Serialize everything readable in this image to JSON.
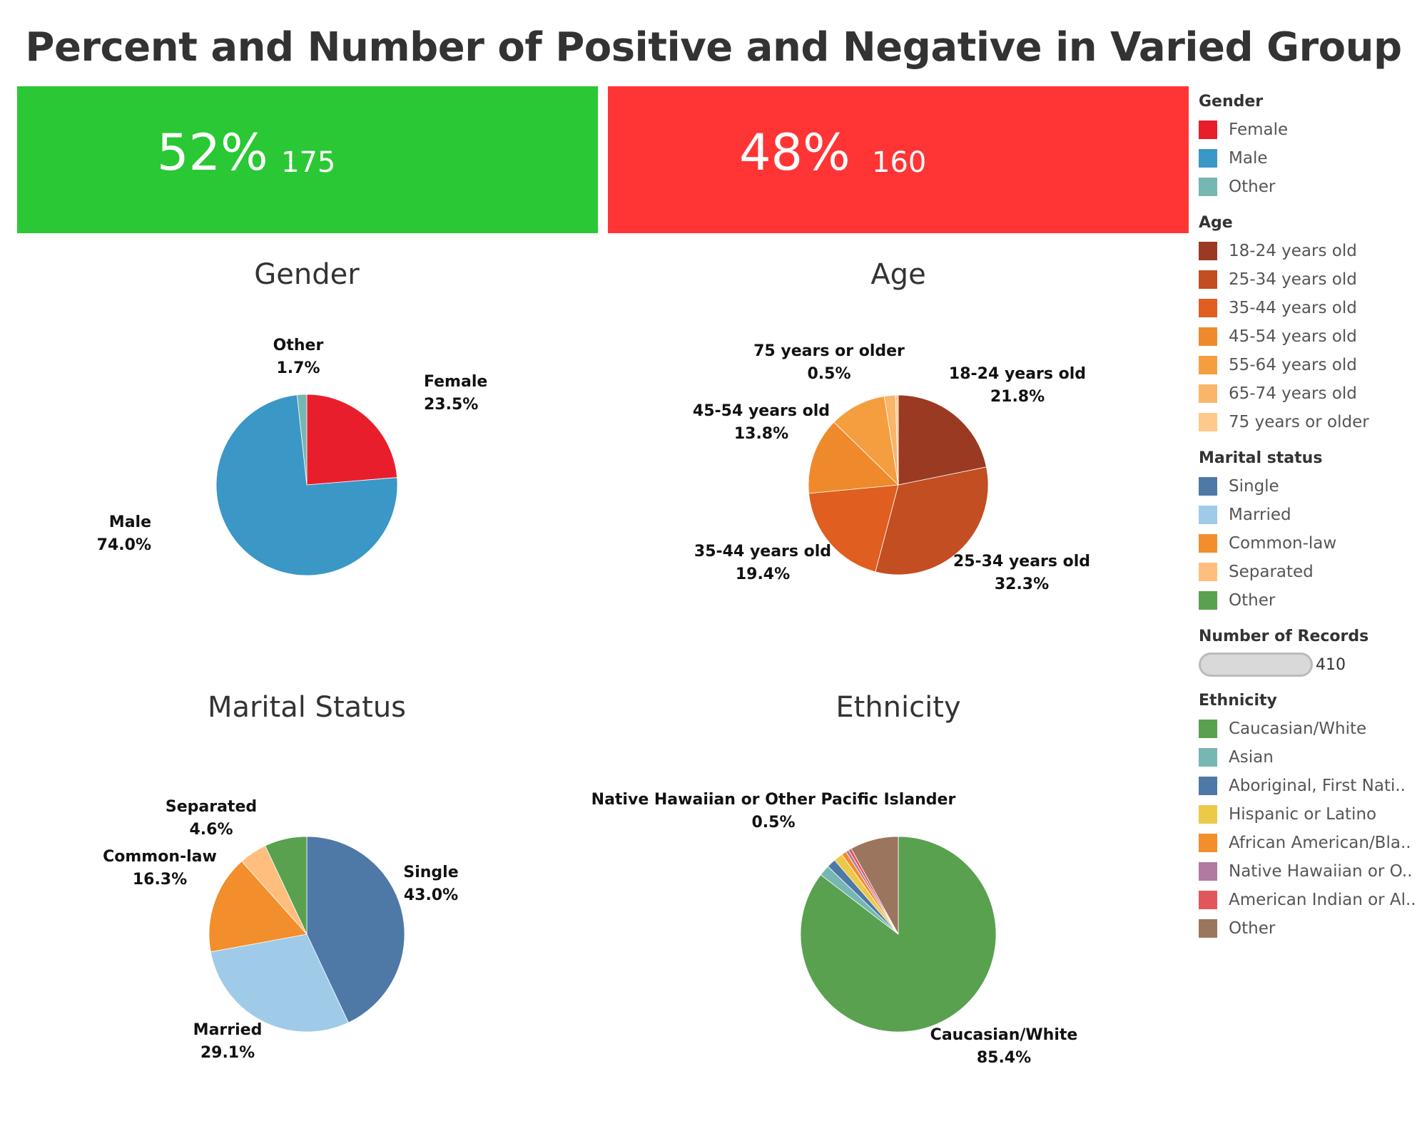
{
  "title": "Percent and Number of Positive and Negative in Varied Group",
  "kpis": {
    "positive": {
      "percent": "52%",
      "count": "175",
      "color": "#2ac834"
    },
    "negative": {
      "percent": "48%",
      "count": "160",
      "color": "#ff3535"
    }
  },
  "chart_data": [
    {
      "type": "pie",
      "title": "Gender",
      "slices": [
        {
          "label": "Female",
          "value": 23.5,
          "value_label": "23.5%",
          "color": "#e81e2c"
        },
        {
          "label": "Male",
          "value": 74.0,
          "value_label": "74.0%",
          "color": "#3a97c6"
        },
        {
          "label": "Other",
          "value": 1.7,
          "value_label": "1.7%",
          "color": "#76b7b2"
        }
      ]
    },
    {
      "type": "pie",
      "title": "Age",
      "slices": [
        {
          "label": "18-24 years old",
          "value": 21.8,
          "value_label": "21.8%",
          "color": "#9a3a22"
        },
        {
          "label": "25-34 years old",
          "value": 32.3,
          "value_label": "32.3%",
          "color": "#c24e21"
        },
        {
          "label": "35-44 years old",
          "value": 19.4,
          "value_label": "19.4%",
          "color": "#df5e20"
        },
        {
          "label": "45-54 years old",
          "value": 13.8,
          "value_label": "13.8%",
          "color": "#ef8a2c"
        },
        {
          "label": "55-64 years old",
          "value": 10.2,
          "value_label": "",
          "color": "#f59e3f"
        },
        {
          "label": "65-74 years old",
          "value": 2.0,
          "value_label": "",
          "color": "#f9b66b"
        },
        {
          "label": "75 years or older",
          "value": 0.5,
          "value_label": "0.5%",
          "color": "#fdc98c"
        }
      ]
    },
    {
      "type": "pie",
      "title": "Marital Status",
      "slices": [
        {
          "label": "Single",
          "value": 43.0,
          "value_label": "43.0%",
          "color": "#4e79a7"
        },
        {
          "label": "Married",
          "value": 29.1,
          "value_label": "29.1%",
          "color": "#a0cbe8"
        },
        {
          "label": "Common-law",
          "value": 16.3,
          "value_label": "16.3%",
          "color": "#f28e2b"
        },
        {
          "label": "Separated",
          "value": 4.6,
          "value_label": "4.6%",
          "color": "#ffbe7d"
        },
        {
          "label": "Other",
          "value": 7.0,
          "value_label": "",
          "color": "#59a14f"
        }
      ]
    },
    {
      "type": "pie",
      "title": "Ethnicity",
      "slices": [
        {
          "label": "Caucasian/White",
          "value": 85.4,
          "value_label": "85.4%",
          "color": "#59a14f"
        },
        {
          "label": "Asian",
          "value": 1.8,
          "value_label": "",
          "color": "#76b7b2"
        },
        {
          "label": "Aboriginal, First Nati..",
          "value": 1.5,
          "value_label": "",
          "color": "#4e79a7"
        },
        {
          "label": "Hispanic or Latino",
          "value": 1.5,
          "value_label": "",
          "color": "#edc948"
        },
        {
          "label": "African American/Bla..",
          "value": 0.8,
          "value_label": "",
          "color": "#f28e2b"
        },
        {
          "label": "Native Hawaiian or Other Pacific Islander",
          "value": 0.5,
          "value_label": "0.5%",
          "color": "#b07aa1"
        },
        {
          "label": "American Indian or Al..",
          "value": 0.5,
          "value_label": "",
          "color": "#e15759"
        },
        {
          "label": "Other",
          "value": 8.0,
          "value_label": "",
          "color": "#9c755f"
        }
      ]
    }
  ],
  "legend": {
    "gender": {
      "title": "Gender",
      "items": [
        {
          "label": "Female",
          "color": "#e81e2c"
        },
        {
          "label": "Male",
          "color": "#3a97c6"
        },
        {
          "label": "Other",
          "color": "#76b7b2"
        }
      ]
    },
    "age": {
      "title": "Age",
      "items": [
        {
          "label": "18-24 years old",
          "color": "#9a3a22"
        },
        {
          "label": "25-34 years old",
          "color": "#c24e21"
        },
        {
          "label": "35-44 years old",
          "color": "#df5e20"
        },
        {
          "label": "45-54 years old",
          "color": "#ef8a2c"
        },
        {
          "label": "55-64 years old",
          "color": "#f59e3f"
        },
        {
          "label": "65-74 years old",
          "color": "#f9b66b"
        },
        {
          "label": "75 years or older",
          "color": "#fdc98c"
        }
      ]
    },
    "marital": {
      "title": "Marital status",
      "items": [
        {
          "label": "Single",
          "color": "#4e79a7"
        },
        {
          "label": "Married",
          "color": "#a0cbe8"
        },
        {
          "label": "Common-law",
          "color": "#f28e2b"
        },
        {
          "label": "Separated",
          "color": "#ffbe7d"
        },
        {
          "label": "Other",
          "color": "#59a14f"
        }
      ]
    },
    "records": {
      "title": "Number of Records",
      "value": "410"
    },
    "ethnicity": {
      "title": "Ethnicity",
      "items": [
        {
          "label": "Caucasian/White",
          "color": "#59a14f"
        },
        {
          "label": "Asian",
          "color": "#76b7b2"
        },
        {
          "label": "Aboriginal, First Nati..",
          "color": "#4e79a7"
        },
        {
          "label": "Hispanic or Latino",
          "color": "#edc948"
        },
        {
          "label": "African American/Bla..",
          "color": "#f28e2b"
        },
        {
          "label": "Native Hawaiian or O..",
          "color": "#b07aa1"
        },
        {
          "label": "American Indian or Al..",
          "color": "#e15759"
        },
        {
          "label": "Other",
          "color": "#9c755f"
        }
      ]
    }
  }
}
